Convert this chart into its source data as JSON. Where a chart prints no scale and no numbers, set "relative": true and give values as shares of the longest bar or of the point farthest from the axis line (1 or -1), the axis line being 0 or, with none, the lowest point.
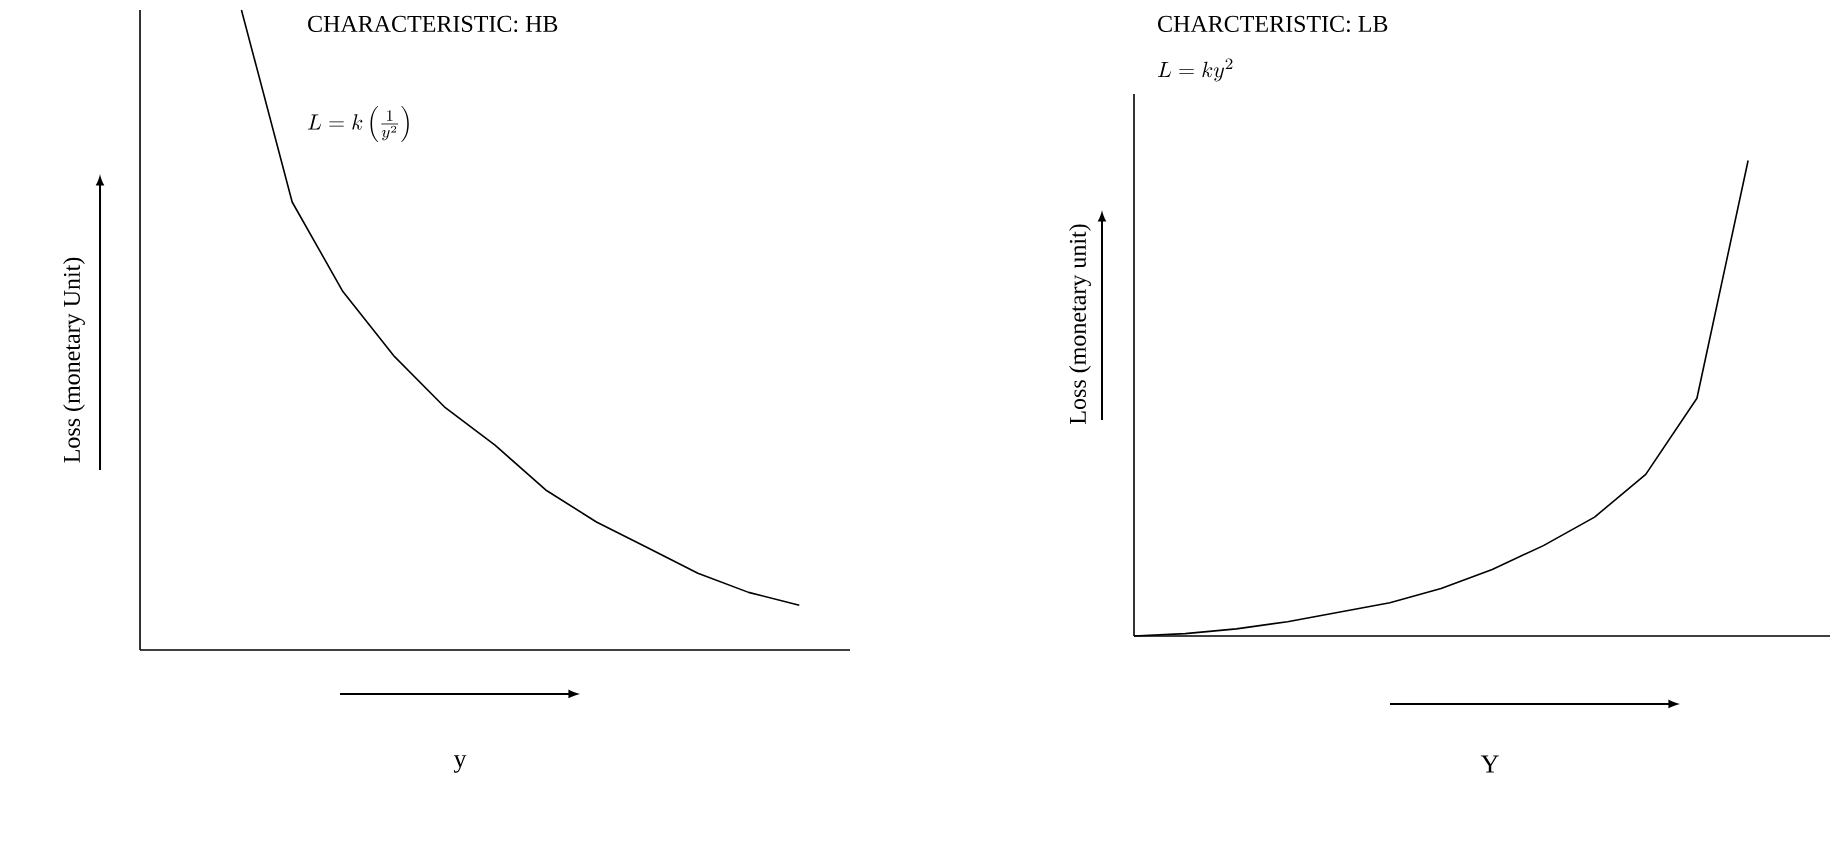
{
  "chart_data": [
    {
      "type": "line",
      "title": "CHARACTERISTIC: HB",
      "annotations": [
        "L = k\\left(\\frac{1}{y^{2}}\\right)"
      ],
      "xlabel": "y",
      "ylabel": "Loss (monetary Unit)",
      "relative": true,
      "categories": [
        null,
        null,
        null,
        null,
        null,
        null,
        null,
        null,
        null,
        null,
        null,
        null,
        null,
        null,
        null
      ],
      "series": [
        {
          "color": "#000000",
          "values": [
            null,
            null,
            1.0,
            0.7,
            0.56,
            0.46,
            0.38,
            0.32,
            0.25,
            0.2,
            0.16,
            0.12,
            0.09,
            0.07,
            null
          ]
        }
      ]
    },
    {
      "type": "line",
      "title": "CHARCTERISTIC: LB",
      "annotations": [
        "L = ky^{2}"
      ],
      "xlabel": "Y",
      "ylabel": "Loss (monetary unit)",
      "relative": true,
      "categories": [
        null,
        null,
        null,
        null,
        null,
        null,
        null,
        null,
        null,
        null,
        null,
        null,
        null,
        null
      ],
      "series": [
        {
          "color": "#000000",
          "values": [
            0,
            0.005,
            0.015,
            0.03,
            0.05,
            0.07,
            0.1,
            0.14,
            0.19,
            0.25,
            0.34,
            0.5,
            1.0,
            null
          ]
        }
      ]
    }
  ]
}
